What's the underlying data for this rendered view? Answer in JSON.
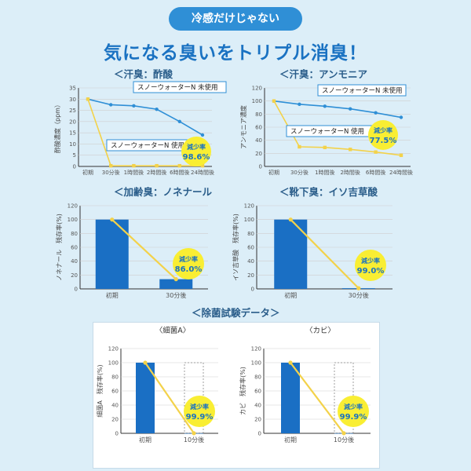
{
  "header": {
    "pill": "冷感だけじゃない",
    "title": "気になる臭いをトリプル消臭！"
  },
  "sections": {
    "sweat_acetic": "＜汗臭：酢酸",
    "sweat_ammonia": "＜汗臭：アンモニア",
    "aging": "＜加齢臭：ノネナール",
    "shoe": "＜靴下臭：イソ吉草酸",
    "antibac": "＜除菌試験データ＞"
  },
  "chart_data": [
    {
      "type": "line",
      "id": "acetic",
      "ylabel": "酢酸濃度（ppm）",
      "ylim": [
        0,
        35
      ],
      "yticks": [
        0,
        5,
        10,
        15,
        20,
        25,
        30,
        35
      ],
      "categories": [
        "初期",
        "30分後",
        "1時間後",
        "2時間後",
        "6時間後",
        "24時間後"
      ],
      "series": [
        {
          "name": "スノーウォーターN 未使用",
          "color": "#2f8fd6",
          "values": [
            30,
            27.5,
            27,
            25.5,
            20,
            14
          ]
        },
        {
          "name": "スノーウォーターN 使用",
          "color": "#f3d24a",
          "values": [
            30,
            0.3,
            0.3,
            0.3,
            0.3,
            0.3
          ]
        }
      ],
      "badge": {
        "label": "減少率",
        "value": "98.6%"
      }
    },
    {
      "type": "line",
      "id": "ammonia",
      "ylabel": "アンモニア濃度",
      "ylim": [
        0,
        120
      ],
      "yticks": [
        0,
        20,
        40,
        60,
        80,
        100,
        120
      ],
      "categories": [
        "初期",
        "30分後",
        "1時間後",
        "2時間後",
        "6時間後",
        "24時間後"
      ],
      "series": [
        {
          "name": "スノーウォーターN 未使用",
          "color": "#2f8fd6",
          "values": [
            100,
            95,
            92,
            88,
            82,
            75
          ]
        },
        {
          "name": "スノーウォーターN 使用",
          "color": "#f3d24a",
          "values": [
            100,
            30,
            29,
            26,
            22,
            17
          ]
        }
      ],
      "badge": {
        "label": "減少率",
        "value": "77.5%"
      }
    },
    {
      "type": "bar",
      "id": "nonenal",
      "ylabel": "ノネナール　残存率(%)",
      "ylim": [
        0,
        120
      ],
      "yticks": [
        0,
        20,
        40,
        60,
        80,
        100,
        120
      ],
      "categories": [
        "初期",
        "30分後"
      ],
      "values": [
        100,
        14
      ],
      "badge": {
        "label": "減少率",
        "value": "86.0%"
      }
    },
    {
      "type": "bar",
      "id": "isovaleric",
      "ylabel": "イソ吉草酸　残存率(%)",
      "ylim": [
        0,
        120
      ],
      "yticks": [
        0,
        20,
        40,
        60,
        80,
        100,
        120
      ],
      "categories": [
        "初期",
        "30分後"
      ],
      "values": [
        100,
        1
      ],
      "badge": {
        "label": "減少率",
        "value": "99.0%"
      }
    },
    {
      "type": "bar",
      "id": "bacteria",
      "title": "〈細菌A〉",
      "ylabel": "細菌A　残存率(%)",
      "ylim": [
        0,
        120
      ],
      "yticks": [
        0,
        20,
        40,
        60,
        80,
        100,
        120
      ],
      "categories": [
        "初期",
        "10分後"
      ],
      "values": [
        100,
        0.1
      ],
      "badge": {
        "label": "減少率",
        "value": "99.9%"
      }
    },
    {
      "type": "bar",
      "id": "mold",
      "title": "〈カビ〉",
      "ylabel": "カビ　残存率(%)",
      "ylim": [
        0,
        120
      ],
      "yticks": [
        0,
        20,
        40,
        60,
        80,
        100,
        120
      ],
      "categories": [
        "初期",
        "10分後"
      ],
      "values": [
        100,
        0.1
      ],
      "badge": {
        "label": "減少率",
        "value": "99.9%"
      }
    }
  ]
}
